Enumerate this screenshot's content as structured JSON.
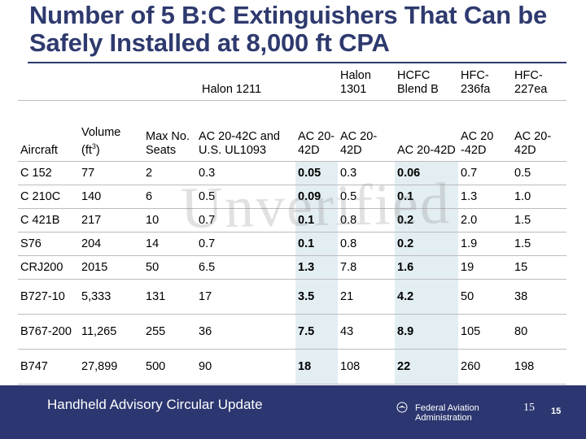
{
  "slide": {
    "title": "Number of 5 B:C Extinguishers That Can be Safely Installed at 8,000 ft CPA",
    "watermark": "Unverified"
  },
  "table": {
    "group_headers": {
      "halon1211": "Halon 1211",
      "halon1301": "Halon 1301",
      "hcfc_blend_b": "HCFC Blend B",
      "hfc236fa": "HFC-236fa",
      "hfc227ea": "HFC-227ea"
    },
    "columns": {
      "aircraft": "Aircraft",
      "volume": "Volume",
      "volume_unit": "(ft",
      "volume_unit_sup": "3",
      "volume_unit_close": ")",
      "max_seats": "Max No. Seats",
      "ac_ul": "AC 20-42C and U.S. UL1093",
      "ac1": "AC 20-42D",
      "ac2": "AC 20-42D",
      "ac3": "AC 20-42D",
      "ac4": "AC 20 -42D",
      "ac5": "AC 20-42D"
    },
    "rows": [
      {
        "aircraft": "C 152",
        "volume": "77",
        "seats": "2",
        "ac_ul": "0.3",
        "h1211_ac": "0.05",
        "h1301": "0.3",
        "hcfc": "0.06",
        "hfc236": "0.7",
        "hfc227": "0.5"
      },
      {
        "aircraft": "C 210C",
        "volume": "140",
        "seats": "6",
        "ac_ul": "0.5",
        "h1211_ac": "0.09",
        "h1301": "0.5",
        "hcfc": "0.1",
        "hfc236": "1.3",
        "hfc227": "1.0"
      },
      {
        "aircraft": "C 421B",
        "volume": "217",
        "seats": "10",
        "ac_ul": "0.7",
        "h1211_ac": "0.1",
        "h1301": "0.8",
        "hcfc": "0.2",
        "hfc236": "2.0",
        "hfc227": "1.5"
      },
      {
        "aircraft": "S76",
        "volume": "204",
        "seats": "14",
        "ac_ul": "0.7",
        "h1211_ac": "0.1",
        "h1301": "0.8",
        "hcfc": "0.2",
        "hfc236": "1.9",
        "hfc227": "1.5"
      },
      {
        "aircraft": "CRJ200",
        "volume": "2015",
        "seats": "50",
        "ac_ul": "6.5",
        "h1211_ac": "1.3",
        "h1301": "7.8",
        "hcfc": "1.6",
        "hfc236": "19",
        "hfc227": "15"
      },
      {
        "aircraft": "B727-10",
        "volume": "5,333",
        "seats": "131",
        "ac_ul": "17",
        "h1211_ac": "3.5",
        "h1301": "21",
        "hcfc": "4.2",
        "hfc236": "50",
        "hfc227": "38"
      },
      {
        "aircraft": "B767-200",
        "volume": "11,265",
        "seats": "255",
        "ac_ul": "36",
        "h1211_ac": "7.5",
        "h1301": "43",
        "hcfc": "8.9",
        "hfc236": "105",
        "hfc227": "80"
      },
      {
        "aircraft": "B747",
        "volume": "27,899",
        "seats": "500",
        "ac_ul": "90",
        "h1211_ac": "18",
        "h1301": "108",
        "hcfc": "22",
        "hfc236": "260",
        "hfc227": "198"
      }
    ]
  },
  "footer": {
    "left_text": "Handheld Advisory Circular Update",
    "agency_line1": "Federal Aviation",
    "agency_line2": "Administration",
    "page_number": "15",
    "page_number_small": "15"
  },
  "colors": {
    "title": "#2e3a6e",
    "footer_bg": "#2c3670",
    "highlight": "#e3eef3"
  }
}
